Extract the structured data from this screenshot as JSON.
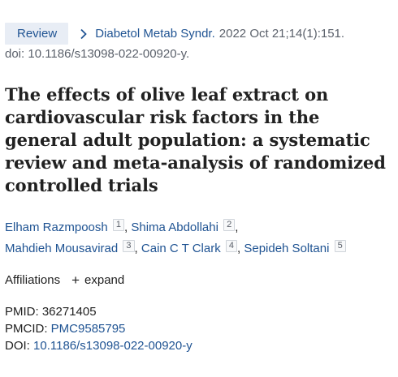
{
  "article_type": "Review",
  "citation": {
    "journal": "Diabetol Metab Syndr.",
    "details": "2022 Oct 21;14(1):151.",
    "doi_line": "doi: 10.1186/s13098-022-00920-y."
  },
  "title": "The effects of olive leaf extract on cardiovascular risk factors in the general adult population: a systematic review and meta-analysis of randomized controlled trials",
  "authors": [
    {
      "name": "Elham Razmpoosh",
      "aff": "1"
    },
    {
      "name": "Shima Abdollahi",
      "aff": "2"
    },
    {
      "name": "Mahdieh Mousavirad",
      "aff": "3"
    },
    {
      "name": "Cain C T Clark",
      "aff": "4"
    },
    {
      "name": "Sepideh Soltani",
      "aff": "5"
    }
  ],
  "affiliations": {
    "label": "Affiliations",
    "expand_label": "expand"
  },
  "identifiers": {
    "pmid_label": "PMID:",
    "pmid": "36271405",
    "pmcid_label": "PMCID:",
    "pmcid": "PMC9585795",
    "doi_label": "DOI:",
    "doi": "10.1186/s13098-022-00920-y"
  },
  "colors": {
    "link": "#205493",
    "badge_bg": "#e8edf5",
    "text": "#212121"
  },
  "icons": [
    "chevron-right-icon",
    "plus-icon"
  ]
}
